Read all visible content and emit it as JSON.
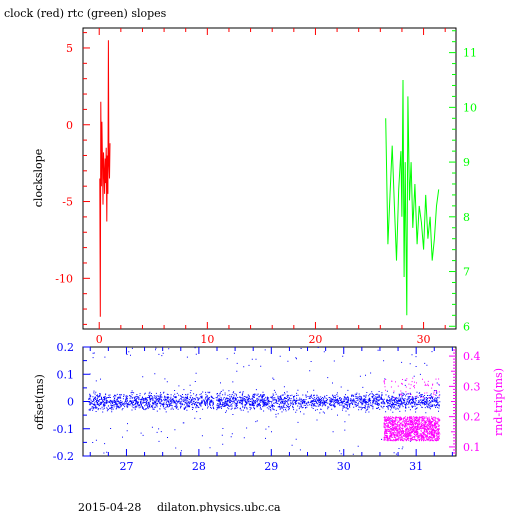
{
  "chart_data": [
    {
      "type": "line",
      "title": "clock (red) rtc (green) slopes",
      "ylabel": "clockslope",
      "xlim": [
        -1.5,
        33
      ],
      "ylim": [
        -13.3,
        6.3
      ],
      "y2lim": [
        5.95,
        11.45
      ],
      "x_ticks": [
        0,
        10,
        20,
        30
      ],
      "y_ticks": [
        5,
        0,
        -5,
        -10
      ],
      "y2_ticks": [
        11,
        10,
        9,
        8,
        7,
        6
      ],
      "grid": false,
      "series": [
        {
          "name": "clock",
          "color": "#ff0000",
          "axis": "left",
          "x": [
            0.05,
            0.1,
            0.15,
            0.2,
            0.25,
            0.3,
            0.35,
            0.4,
            0.45,
            0.5,
            0.55,
            0.6,
            0.65,
            0.7,
            0.75,
            0.8,
            0.85,
            0.9,
            0.95,
            1.0
          ],
          "y": [
            -3.5,
            -12.5,
            1.5,
            -4.0,
            0.2,
            -2.5,
            -5.2,
            -1.8,
            -3.0,
            -4.5,
            -2.2,
            -3.8,
            -1.5,
            -6.3,
            -2.0,
            -4.5,
            5.5,
            -2.5,
            -3.5,
            -1.2
          ]
        },
        {
          "name": "rtc",
          "color": "#00ff00",
          "axis": "right",
          "x": [
            26.5,
            26.7,
            26.9,
            27.1,
            27.3,
            27.5,
            27.7,
            27.9,
            28.0,
            28.1,
            28.2,
            28.3,
            28.45,
            28.55,
            28.7,
            28.85,
            29.0,
            29.2,
            29.4,
            29.6,
            29.8,
            30.0,
            30.2,
            30.4,
            30.6,
            30.8,
            31.0,
            31.2,
            31.4
          ],
          "y": [
            9.8,
            7.5,
            8.4,
            9.3,
            8.2,
            7.2,
            8.5,
            9.2,
            8.0,
            10.5,
            6.9,
            9.0,
            6.2,
            10.2,
            8.3,
            9.0,
            7.8,
            8.6,
            7.5,
            8.2,
            7.9,
            7.4,
            8.4,
            7.6,
            8.0,
            7.2,
            7.6,
            8.2,
            8.5
          ]
        }
      ]
    },
    {
      "type": "scatter",
      "ylabel": "offset(ms)",
      "y2label": "rnd-trip(ms)",
      "xlim": [
        26.4,
        31.55
      ],
      "ylim": [
        -0.2,
        0.2
      ],
      "y2lim": [
        0.07,
        0.43
      ],
      "x_ticks": [
        27,
        28,
        29,
        30,
        31
      ],
      "y_ticks": [
        0.2,
        0.1,
        0,
        -0.1,
        -0.2
      ],
      "y2_ticks": [
        0.4,
        0.3,
        0.2,
        0.1
      ],
      "grid": false,
      "series": [
        {
          "name": "offset",
          "color": "#0000ff",
          "axis": "left",
          "x_range": [
            26.47,
            31.32
          ],
          "y_center": 0.0,
          "y_spread": 0.03,
          "gap_after": 28.2
        },
        {
          "name": "rnd-trip",
          "color": "#ff00ff",
          "axis": "right",
          "x_range": [
            30.55,
            31.32
          ],
          "y_band": [
            0.12,
            0.2
          ],
          "outliers": [
            0.26,
            0.33
          ]
        }
      ]
    }
  ],
  "footer": {
    "date": "2015-04-28",
    "host": "dilaton.physics.ubc.ca"
  }
}
